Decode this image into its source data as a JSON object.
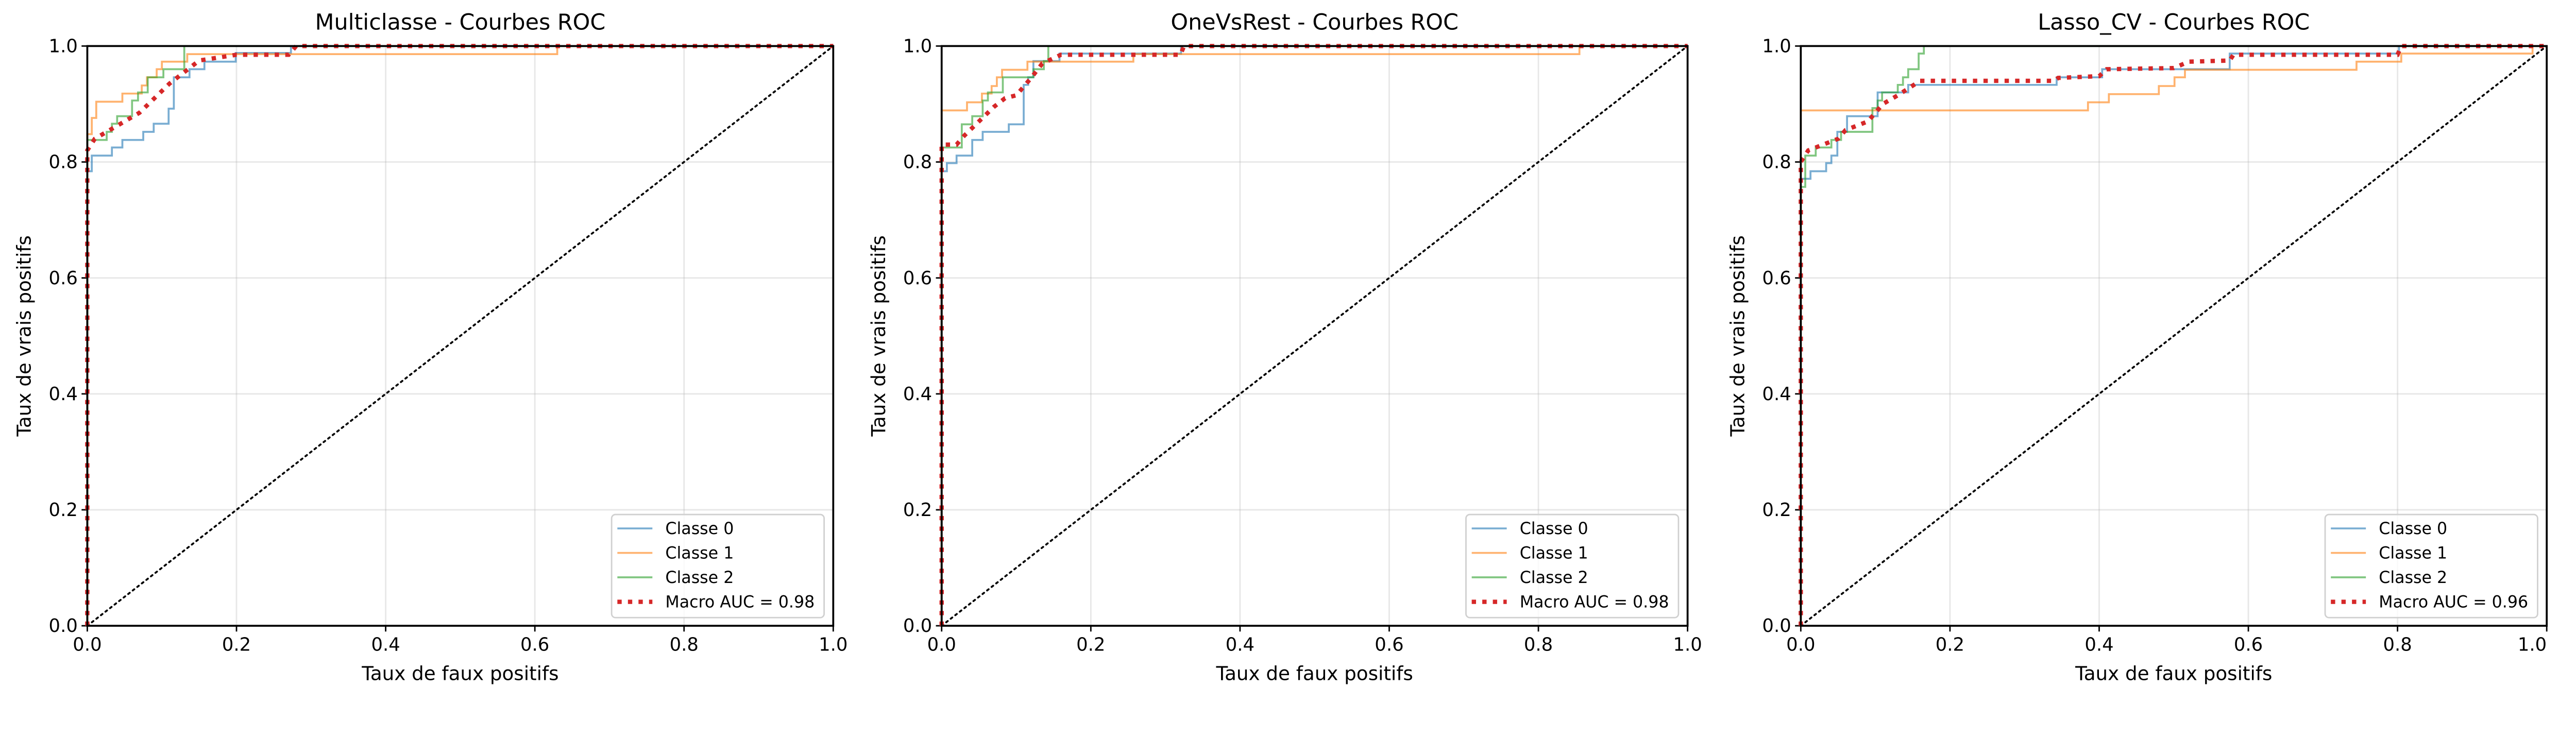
{
  "chart_data": [
    {
      "type": "line",
      "title": "Multiclasse - Courbes ROC",
      "xlabel": "Taux de faux positifs",
      "ylabel": "Taux de vrais positifs",
      "xlim": [
        0,
        1
      ],
      "ylim": [
        0,
        1
      ],
      "xticks": [
        "0.0",
        "0.2",
        "0.4",
        "0.6",
        "0.8",
        "1.0"
      ],
      "yticks": [
        "0.0",
        "0.2",
        "0.4",
        "0.6",
        "0.8",
        "1.0"
      ],
      "grid": true,
      "legend_position": "bottom-right",
      "diagonal": true,
      "series": [
        {
          "name": "Classe 0",
          "color": "#1f77b4",
          "style": "step",
          "points": [
            [
              0,
              0.784
            ],
            [
              0.006,
              0.811
            ],
            [
              0.033,
              0.825
            ],
            [
              0.047,
              0.838
            ],
            [
              0.075,
              0.852
            ],
            [
              0.089,
              0.866
            ],
            [
              0.109,
              0.892
            ],
            [
              0.116,
              0.946
            ],
            [
              0.137,
              0.96
            ],
            [
              0.157,
              0.973
            ],
            [
              0.199,
              0.988
            ],
            [
              0.273,
              1.0
            ],
            [
              1,
              1
            ]
          ]
        },
        {
          "name": "Classe 1",
          "color": "#ff7f0e",
          "style": "step",
          "points": [
            [
              0,
              0.848
            ],
            [
              0.006,
              0.876
            ],
            [
              0.012,
              0.904
            ],
            [
              0.047,
              0.918
            ],
            [
              0.073,
              0.932
            ],
            [
              0.08,
              0.946
            ],
            [
              0.093,
              0.96
            ],
            [
              0.1,
              0.973
            ],
            [
              0.134,
              0.986
            ],
            [
              0.63,
              1.0
            ],
            [
              1,
              1
            ]
          ]
        },
        {
          "name": "Classe 2",
          "color": "#2ca02c",
          "style": "step",
          "points": [
            [
              0,
              0.838
            ],
            [
              0.026,
              0.852
            ],
            [
              0.033,
              0.866
            ],
            [
              0.04,
              0.879
            ],
            [
              0.06,
              0.906
            ],
            [
              0.068,
              0.92
            ],
            [
              0.081,
              0.946
            ],
            [
              0.102,
              0.96
            ],
            [
              0.13,
              1.0
            ],
            [
              1,
              1
            ]
          ]
        },
        {
          "name": "Macro AUC = 0.98",
          "color": "#d62728",
          "style": "dotted",
          "points": [
            [
              0,
              0.82
            ],
            [
              0.01,
              0.84
            ],
            [
              0.03,
              0.855
            ],
            [
              0.05,
              0.87
            ],
            [
              0.07,
              0.885
            ],
            [
              0.09,
              0.91
            ],
            [
              0.11,
              0.935
            ],
            [
              0.13,
              0.955
            ],
            [
              0.15,
              0.975
            ],
            [
              0.2,
              0.985
            ],
            [
              0.27,
              0.985
            ],
            [
              0.28,
              1.0
            ],
            [
              1,
              1
            ]
          ]
        }
      ]
    },
    {
      "type": "line",
      "title": "OneVsRest - Courbes ROC",
      "xlabel": "Taux de faux positifs",
      "ylabel": "Taux de vrais positifs",
      "xlim": [
        0,
        1
      ],
      "ylim": [
        0,
        1
      ],
      "xticks": [
        "0.0",
        "0.2",
        "0.4",
        "0.6",
        "0.8",
        "1.0"
      ],
      "yticks": [
        "0.0",
        "0.2",
        "0.4",
        "0.6",
        "0.8",
        "1.0"
      ],
      "grid": true,
      "legend_position": "bottom-right",
      "diagonal": true,
      "series": [
        {
          "name": "Classe 0",
          "color": "#1f77b4",
          "style": "step",
          "points": [
            [
              0,
              0.784
            ],
            [
              0.007,
              0.798
            ],
            [
              0.02,
              0.811
            ],
            [
              0.041,
              0.838
            ],
            [
              0.055,
              0.852
            ],
            [
              0.09,
              0.865
            ],
            [
              0.11,
              0.933
            ],
            [
              0.116,
              0.946
            ],
            [
              0.123,
              0.974
            ],
            [
              0.158,
              0.987
            ],
            [
              0.321,
              1.0
            ],
            [
              1,
              1
            ]
          ]
        },
        {
          "name": "Classe 1",
          "color": "#ff7f0e",
          "style": "step",
          "points": [
            [
              0,
              0.889
            ],
            [
              0.034,
              0.903
            ],
            [
              0.054,
              0.918
            ],
            [
              0.067,
              0.931
            ],
            [
              0.074,
              0.946
            ],
            [
              0.081,
              0.959
            ],
            [
              0.115,
              0.973
            ],
            [
              0.257,
              0.986
            ],
            [
              0.855,
              1.0
            ],
            [
              1,
              1
            ]
          ]
        },
        {
          "name": "Classe 2",
          "color": "#2ca02c",
          "style": "step",
          "points": [
            [
              0,
              0.825
            ],
            [
              0.027,
              0.865
            ],
            [
              0.041,
              0.879
            ],
            [
              0.055,
              0.906
            ],
            [
              0.062,
              0.92
            ],
            [
              0.082,
              0.946
            ],
            [
              0.123,
              0.96
            ],
            [
              0.137,
              0.974
            ],
            [
              0.143,
              1.0
            ],
            [
              1,
              1
            ]
          ]
        },
        {
          "name": "Macro AUC = 0.98",
          "color": "#d62728",
          "style": "dotted",
          "points": [
            [
              0,
              0.83
            ],
            [
              0.02,
              0.83
            ],
            [
              0.03,
              0.845
            ],
            [
              0.05,
              0.87
            ],
            [
              0.07,
              0.895
            ],
            [
              0.085,
              0.91
            ],
            [
              0.1,
              0.915
            ],
            [
              0.11,
              0.93
            ],
            [
              0.12,
              0.945
            ],
            [
              0.135,
              0.97
            ],
            [
              0.16,
              0.985
            ],
            [
              0.32,
              0.985
            ],
            [
              0.325,
              1.0
            ],
            [
              1,
              1
            ]
          ]
        }
      ]
    },
    {
      "type": "line",
      "title": "Lasso_CV - Courbes ROC",
      "xlabel": "Taux de faux positifs",
      "ylabel": "Taux de vrais positifs",
      "xlim": [
        0,
        1
      ],
      "ylim": [
        0,
        1
      ],
      "xticks": [
        "0.0",
        "0.2",
        "0.4",
        "0.6",
        "0.8",
        "1.0"
      ],
      "yticks": [
        "0.0",
        "0.2",
        "0.4",
        "0.6",
        "0.8",
        "1.0"
      ],
      "grid": true,
      "legend_position": "bottom-right",
      "diagonal": true,
      "series": [
        {
          "name": "Classe 0",
          "color": "#1f77b4",
          "style": "step",
          "points": [
            [
              0,
              0.771
            ],
            [
              0.013,
              0.784
            ],
            [
              0.034,
              0.798
            ],
            [
              0.041,
              0.811
            ],
            [
              0.049,
              0.852
            ],
            [
              0.062,
              0.879
            ],
            [
              0.103,
              0.92
            ],
            [
              0.144,
              0.933
            ],
            [
              0.343,
              0.946
            ],
            [
              0.404,
              0.96
            ],
            [
              0.575,
              0.987
            ],
            [
              0.802,
              1.0
            ],
            [
              1,
              1
            ]
          ]
        },
        {
          "name": "Classe 1",
          "color": "#ff7f0e",
          "style": "step",
          "points": [
            [
              0,
              0.889
            ],
            [
              0.385,
              0.903
            ],
            [
              0.413,
              0.917
            ],
            [
              0.48,
              0.931
            ],
            [
              0.501,
              0.946
            ],
            [
              0.515,
              0.959
            ],
            [
              0.745,
              0.973
            ],
            [
              0.805,
              0.987
            ],
            [
              0.981,
              1.0
            ],
            [
              1,
              1
            ]
          ]
        },
        {
          "name": "Classe 2",
          "color": "#2ca02c",
          "style": "step",
          "points": [
            [
              0,
              0.757
            ],
            [
              0.006,
              0.811
            ],
            [
              0.02,
              0.825
            ],
            [
              0.041,
              0.838
            ],
            [
              0.054,
              0.852
            ],
            [
              0.096,
              0.893
            ],
            [
              0.103,
              0.906
            ],
            [
              0.109,
              0.92
            ],
            [
              0.13,
              0.933
            ],
            [
              0.137,
              0.946
            ],
            [
              0.144,
              0.96
            ],
            [
              0.158,
              0.987
            ],
            [
              0.165,
              1.0
            ],
            [
              1,
              1
            ]
          ]
        },
        {
          "name": "Macro AUC = 0.96",
          "color": "#d62728",
          "style": "dotted",
          "points": [
            [
              0,
              0.8
            ],
            [
              0.01,
              0.82
            ],
            [
              0.03,
              0.83
            ],
            [
              0.05,
              0.84
            ],
            [
              0.06,
              0.855
            ],
            [
              0.09,
              0.87
            ],
            [
              0.1,
              0.885
            ],
            [
              0.11,
              0.9
            ],
            [
              0.13,
              0.915
            ],
            [
              0.16,
              0.94
            ],
            [
              0.34,
              0.94
            ],
            [
              0.345,
              0.945
            ],
            [
              0.4,
              0.948
            ],
            [
              0.41,
              0.96
            ],
            [
              0.5,
              0.962
            ],
            [
              0.52,
              0.973
            ],
            [
              0.575,
              0.975
            ],
            [
              0.58,
              0.985
            ],
            [
              0.8,
              0.985
            ],
            [
              0.805,
              1.0
            ],
            [
              1,
              1
            ]
          ]
        }
      ]
    }
  ]
}
